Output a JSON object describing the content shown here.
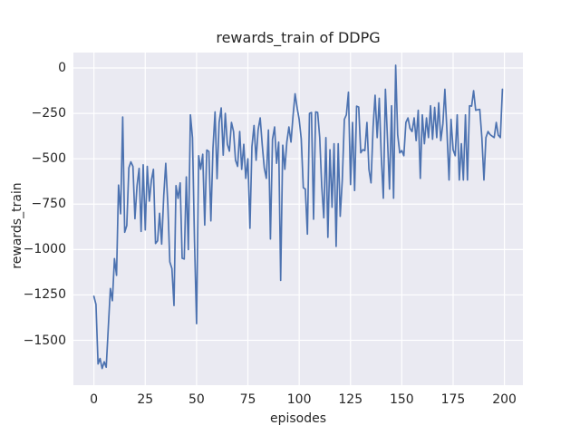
{
  "title": "rewards_train of DDPG",
  "colors": {
    "figure_background": "#ffffff",
    "axes_background": "#eaeaf2",
    "grid": "#ffffff",
    "line": "#4c72b0",
    "text": "#262626"
  },
  "chart_data": {
    "type": "line",
    "title": "rewards_train of DDPG",
    "xlabel": "episodes",
    "ylabel": "rewards_train",
    "x_ticks": [
      0,
      25,
      50,
      75,
      100,
      125,
      150,
      175,
      200
    ],
    "y_ticks": [
      0,
      -250,
      -500,
      -750,
      -1000,
      -1250,
      -1500
    ],
    "xlim": [
      -10,
      209
    ],
    "ylim": [
      -1747,
      85
    ],
    "grid": true,
    "legend_position": "none",
    "line_color": "#4c72b0",
    "series": [
      {
        "name": "rewards_train",
        "x_start": 0,
        "x_step": 1,
        "values": [
          -1258,
          -1302,
          -1630,
          -1600,
          -1655,
          -1618,
          -1648,
          -1430,
          -1215,
          -1282,
          -1050,
          -1142,
          -645,
          -803,
          -270,
          -905,
          -868,
          -550,
          -517,
          -542,
          -830,
          -650,
          -553,
          -900,
          -533,
          -892,
          -542,
          -733,
          -617,
          -558,
          -967,
          -952,
          -800,
          -970,
          -702,
          -525,
          -752,
          -1068,
          -1105,
          -1308,
          -648,
          -718,
          -633,
          -1048,
          -1052,
          -600,
          -1000,
          -258,
          -385,
          -948,
          -1408,
          -483,
          -558,
          -475,
          -865,
          -452,
          -460,
          -842,
          -442,
          -242,
          -610,
          -300,
          -220,
          -480,
          -250,
          -420,
          -458,
          -300,
          -350,
          -508,
          -542,
          -350,
          -558,
          -420,
          -608,
          -500,
          -883,
          -433,
          -317,
          -508,
          -342,
          -275,
          -425,
          -550,
          -608,
          -342,
          -942,
          -392,
          -325,
          -525,
          -408,
          -1170,
          -425,
          -558,
          -408,
          -325,
          -408,
          -267,
          -142,
          -220,
          -283,
          -390,
          -660,
          -667,
          -915,
          -250,
          -245,
          -833,
          -242,
          -245,
          -383,
          -650,
          -825,
          -383,
          -933,
          -450,
          -767,
          -417,
          -983,
          -417,
          -817,
          -617,
          -283,
          -258,
          -133,
          -642,
          -300,
          -675,
          -210,
          -215,
          -467,
          -450,
          -455,
          -300,
          -558,
          -633,
          -325,
          -150,
          -383,
          -167,
          -483,
          -717,
          -117,
          -383,
          -667,
          -208,
          -717,
          15,
          -367,
          -467,
          -455,
          -483,
          -300,
          -275,
          -333,
          -350,
          -275,
          -400,
          -233,
          -608,
          -258,
          -417,
          -275,
          -383,
          -208,
          -392,
          -217,
          -383,
          -192,
          -400,
          -308,
          -117,
          -350,
          -617,
          -283,
          -450,
          -483,
          -258,
          -617,
          -417,
          -617,
          -258,
          -617,
          -208,
          -210,
          -125,
          -233,
          -230,
          -228,
          -383,
          -617,
          -383,
          -350,
          -367,
          -375,
          -383,
          -300,
          -370,
          -383,
          -117
        ]
      }
    ]
  }
}
